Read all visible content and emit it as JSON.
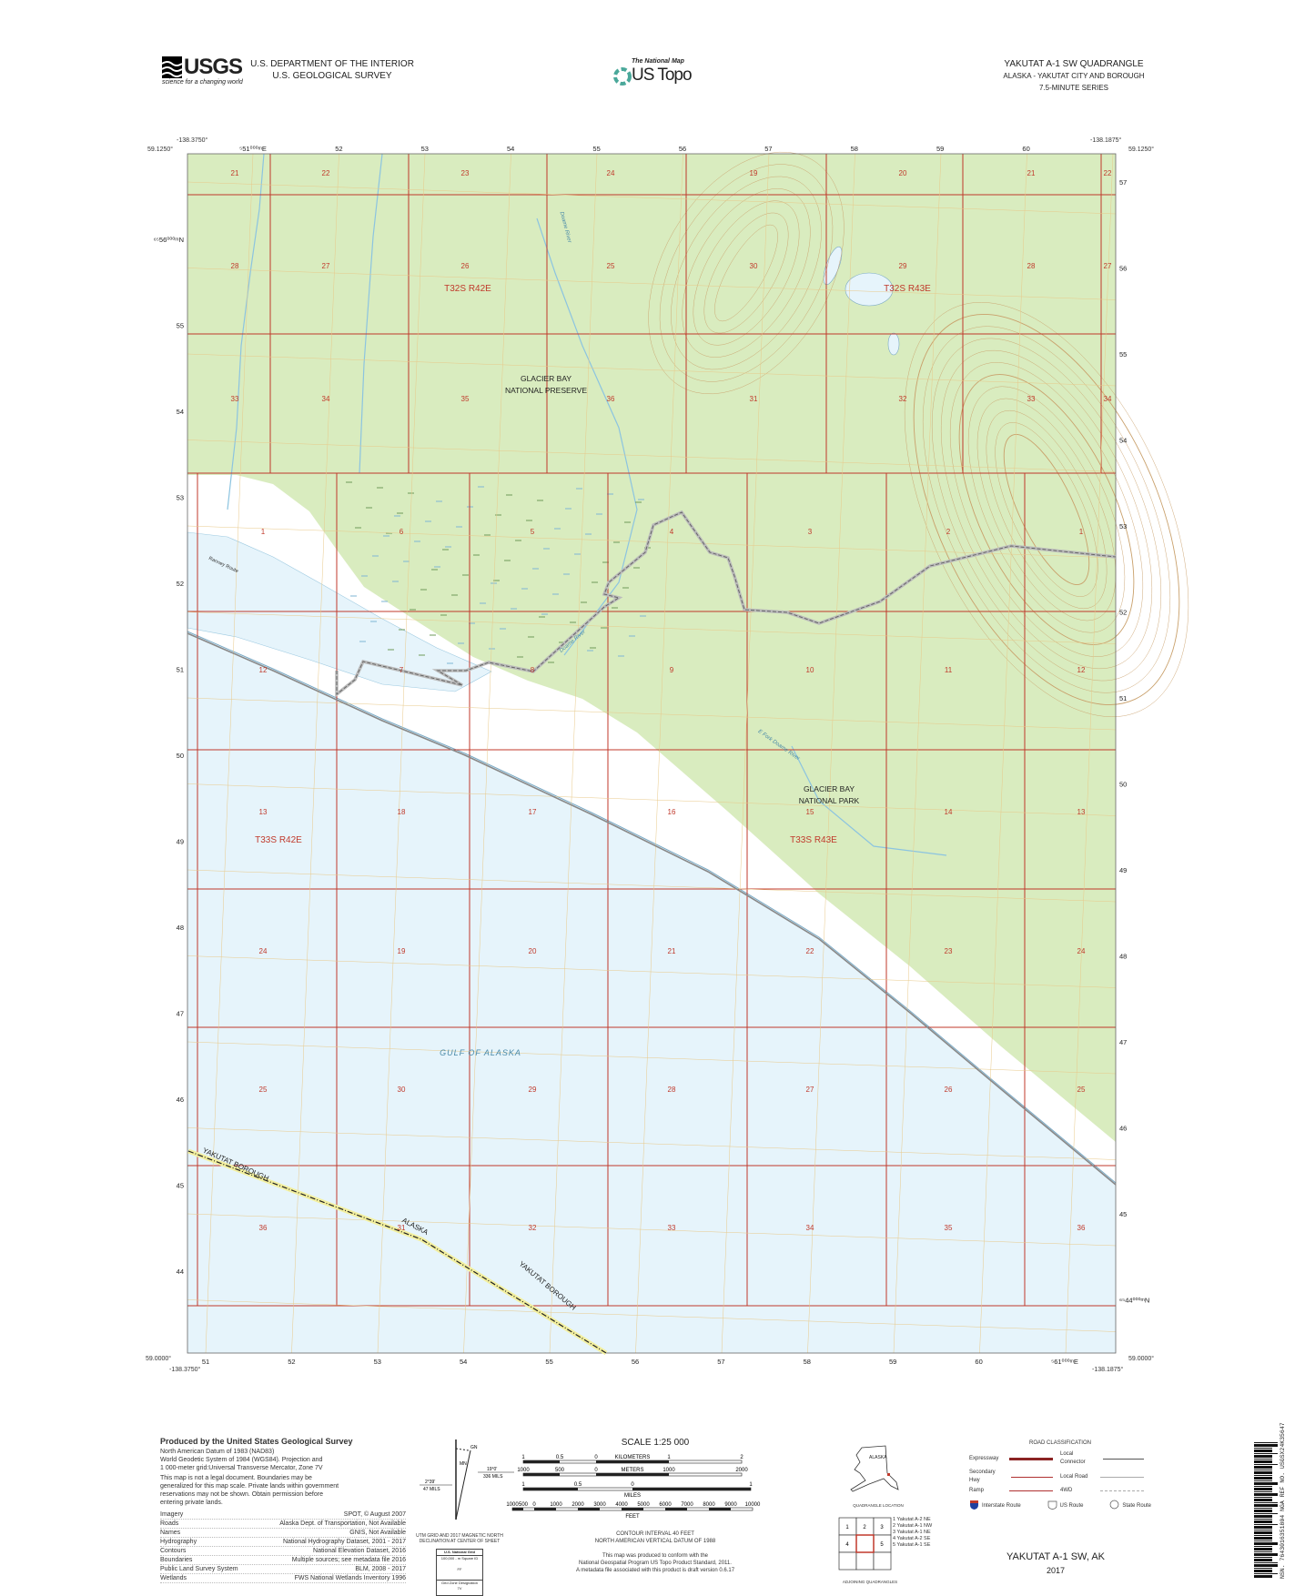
{
  "header": {
    "usgs_logo_text": "USGS",
    "usgs_tagline": "science for a changing world",
    "department": "U.S. DEPARTMENT OF THE INTERIOR",
    "survey": "U.S. GEOLOGICAL SURVEY",
    "national_map": "The National Map",
    "us_topo": "US Topo",
    "quad_title": "YAKUTAT A-1 SW QUADRANGLE",
    "state_area": "ALASKA - YAKUTAT CITY AND BOROUGH",
    "series": "7.5-MINUTE SERIES"
  },
  "corners": {
    "top_left_lon": "-138.3750°",
    "top_left_lat": "59.1250°",
    "top_right_lon": "-138.1875°",
    "top_right_lat": "59.1250°",
    "bottom_left_lat": "59.0000°",
    "bottom_left_lon": "-138.3750°",
    "bottom_right_lon": "-138.1875°",
    "bottom_right_lat": "59.0000°"
  },
  "grid": {
    "top_easting": [
      "⁵51⁰⁰⁰ᵐE",
      "52",
      "53",
      "54",
      "55",
      "56",
      "57",
      "58",
      "59",
      "60"
    ],
    "bottom_easting": [
      "51",
      "52",
      "53",
      "54",
      "55",
      "56",
      "57",
      "58",
      "59",
      "60",
      "⁵61⁰⁰⁰ᵐE"
    ],
    "left_northing": [
      "⁶⁵56⁰⁰⁰ᵐN",
      "55",
      "54",
      "53",
      "52",
      "51",
      "50",
      "49",
      "48",
      "47",
      "46",
      "45",
      "44"
    ],
    "right_northing": [
      "57",
      "56",
      "55",
      "54",
      "53",
      "52",
      "51",
      "50",
      "49",
      "48",
      "47",
      "46",
      "45",
      "⁶⁵44⁰⁰⁰ᵐN"
    ]
  },
  "sections": [
    [
      "21",
      "22",
      "23",
      "24",
      "19",
      "20",
      "21",
      "22"
    ],
    [
      "28",
      "27",
      "26",
      "25",
      "30",
      "29",
      "28",
      "27"
    ],
    [
      "33",
      "34",
      "35",
      "36",
      "31",
      "32",
      "33",
      "34"
    ],
    [
      "1",
      "6",
      "5",
      "4",
      "3",
      "2",
      "1"
    ],
    [
      "12",
      "7",
      "8",
      "9",
      "10",
      "11",
      "12"
    ],
    [
      "13",
      "18",
      "17",
      "16",
      "15",
      "14",
      "13"
    ],
    [
      "24",
      "19",
      "20",
      "21",
      "22",
      "23",
      "24"
    ],
    [
      "25",
      "30",
      "29",
      "28",
      "27",
      "26",
      "25"
    ],
    [
      "36",
      "31",
      "32",
      "33",
      "34",
      "35",
      "36"
    ]
  ],
  "map_labels": {
    "township_nw": "T32S R42E",
    "township_ne": "T32S R43E",
    "township_sw": "T33S R42E",
    "township_se": "T33S R43E",
    "preserve_1": "GLACIER BAY",
    "preserve_2": "NATIONAL PRESERVE",
    "park_1": "GLACIER BAY",
    "park_2": "NATIONAL PARK",
    "gulf": "GULF OF ALASKA",
    "borough_1": "YAKUTAT BOROUGH",
    "borough_2": "YAKUTAT BOROUGH",
    "alaska": "ALASKA",
    "river_1": "Doame River",
    "river_2": "Doame River",
    "river_3": "E Fork Doame River",
    "route": "Ranney Route"
  },
  "colors": {
    "vegetation": "#d9ecbf",
    "water": "#e6f4fb",
    "section_line": "#c0392b",
    "contour": "#c9a06b",
    "road": "#9a9a9a"
  },
  "footer": {
    "produced_by": "Produced by the United States Geological Survey",
    "datum_lines": [
      "North American Datum of 1983 (NAD83)",
      "World Geodetic System of 1984 (WGS84). Projection and",
      "1 000-meter grid:Universal Transverse Mercator, Zone 7V"
    ],
    "legal_lines": [
      "This map is not a legal document. Boundaries may be",
      "generalized for this map scale. Private lands within government",
      "reservations may not be shown. Obtain permission before",
      "entering private lands."
    ],
    "sources": [
      {
        "k": "Imagery",
        "v": "SPOT, © August 2007"
      },
      {
        "k": "Roads",
        "v": "Alaska Dept. of Transportation, Not Available"
      },
      {
        "k": "Names",
        "v": "GNIS, Not Available"
      },
      {
        "k": "Hydrography",
        "v": "National Hydrography Dataset, 2001 - 2017"
      },
      {
        "k": "Contours",
        "v": "National Elevation Dataset, 2016"
      },
      {
        "k": "Boundaries",
        "v": "Multiple sources; see metadata file 2016"
      },
      {
        "k": "Public Land Survey System",
        "v": "BLM, 2008 - 2017"
      },
      {
        "k": "Wetlands",
        "v": "FWS National Wetlands Inventory 1996"
      }
    ],
    "declination": {
      "gn": "GN",
      "mn": "MN",
      "left_angle": "2°39'",
      "left_mils": "47 MILS",
      "right_angle": "19°0'",
      "right_mils": "336 MILS",
      "caption_1": "UTM GRID AND 2017 MAGNETIC NORTH",
      "caption_2": "DECLINATION AT CENTER OF SHEET"
    },
    "national_grid": {
      "title": "U.S. National Grid",
      "square": "100,000 - m Square ID",
      "id": "FF",
      "gzd_label": "Grid Zone Designation",
      "gzd": "7V"
    },
    "scale": {
      "title": "SCALE 1:25 000",
      "km_ticks": [
        "1",
        "0.5",
        "0",
        "1",
        "2"
      ],
      "km_label": "KILOMETERS",
      "m_ticks": [
        "1000",
        "500",
        "0",
        "1000",
        "2000"
      ],
      "m_label": "METERS",
      "mi_ticks": [
        "1",
        "0.5",
        "0",
        "1"
      ],
      "mi_label": "MILES",
      "ft_ticks": [
        "1000",
        "500",
        "0",
        "1000",
        "2000",
        "3000",
        "4000",
        "5000",
        "6000",
        "7000",
        "8000",
        "9000",
        "10000"
      ],
      "ft_label": "FEET"
    },
    "contour_1": "CONTOUR INTERVAL 40 FEET",
    "contour_2": "NORTH AMERICAN VERTICAL DATUM OF 1988",
    "conform_1": "This map was produced to conform with the",
    "conform_2": "National Geospatial Program US Topo Product Standard, 2011.",
    "conform_3": "A metadata file associated with this product is draft version 0.6.17",
    "location_label": "ALASKA",
    "location_caption": "QUADRANGLE LOCATION",
    "adjoining_cells": [
      "1",
      "2",
      "3",
      "4",
      "5"
    ],
    "adjoining_names": [
      "1 Yakutat A-2 NE",
      "2 Yakutat A-1 NW",
      "3 Yakutat A-1 NE",
      "4 Yakutat A-2 SE",
      "5 Yakutat A-1 SE"
    ],
    "adjoining_caption": "ADJOINING QUADRANGLES",
    "road_title": "ROAD CLASSIFICATION",
    "road_items": [
      "Expressway",
      "Secondary Hwy",
      "Ramp",
      "Local Connector",
      "Local Road",
      "4WD"
    ],
    "route_items": [
      "Interstate Route",
      "US Route",
      "State Route"
    ],
    "sheet_title": "YAKUTAT A-1 SW,  AK",
    "year": "2017",
    "barcode_text": "NSN. 7643016351804 NGA REF NO. USGSX24K35647"
  }
}
